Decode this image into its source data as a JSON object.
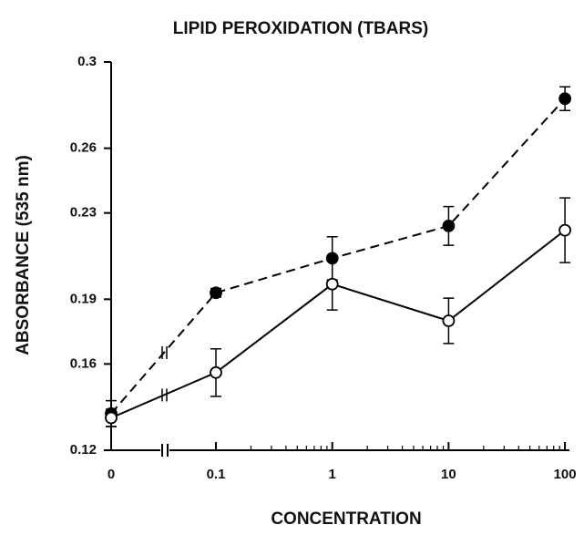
{
  "chart_data": {
    "type": "line",
    "title": "LIPID PEROXIDATION (TBARS)",
    "x_label": "CONCENTRATION",
    "y_label": "ABSORBANCE (535 nm)",
    "categories": [
      "0",
      "0.1",
      "1",
      "10",
      "100"
    ],
    "ylim": [
      0.12,
      0.3
    ],
    "yticks": [
      0.12,
      0.16,
      0.19,
      0.23,
      0.26,
      0.3
    ],
    "series": [
      {
        "color": "#000000",
        "marker_fill": "#000000",
        "line_style": "dashed",
        "values": [
          0.137,
          0.193,
          0.209,
          0.224,
          0.283
        ],
        "errors": [
          0.006,
          0.002,
          0.01,
          0.009,
          0.0055
        ]
      },
      {
        "color": "#000000",
        "marker_fill": "#ffffff",
        "line_style": "solid",
        "values": [
          0.135,
          0.156,
          0.197,
          0.18,
          0.222
        ],
        "errors": [
          0.004,
          0.011,
          0.012,
          0.0105,
          0.015
        ]
      }
    ]
  }
}
